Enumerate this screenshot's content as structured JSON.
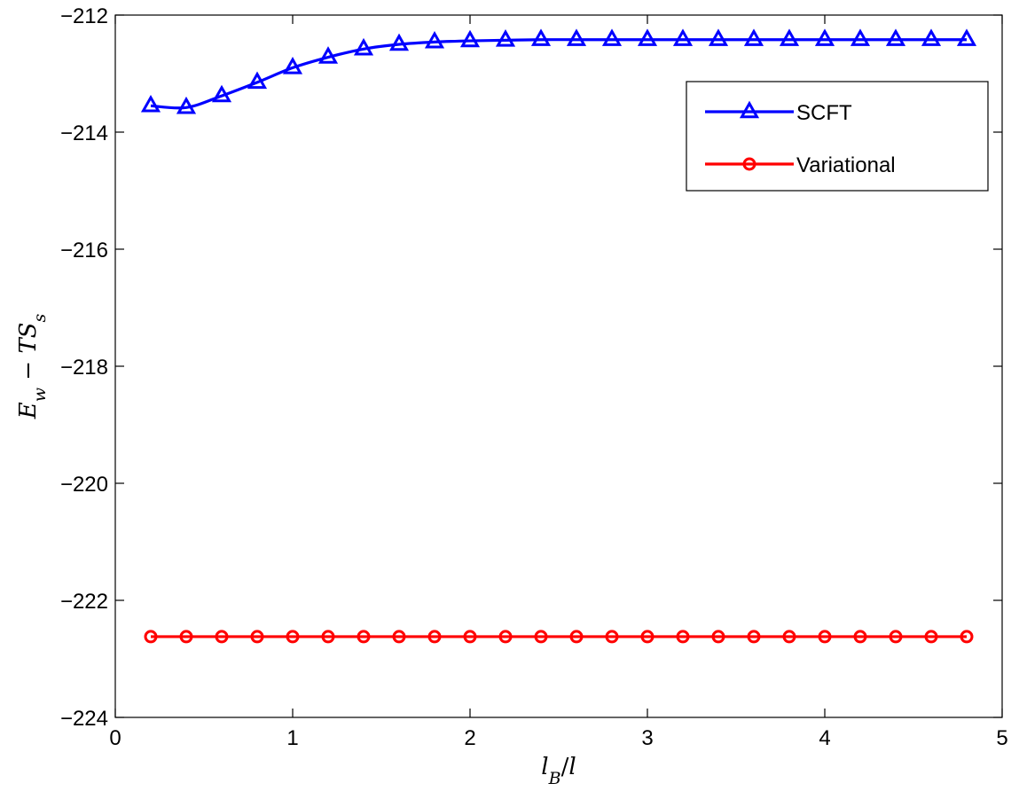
{
  "chart_data": {
    "type": "line",
    "title": "",
    "xlabel": "l_B/l",
    "ylabel": "E_w − TS_s",
    "xlim": [
      0,
      5
    ],
    "ylim": [
      -224,
      -212
    ],
    "xticks": [
      0,
      1,
      2,
      3,
      4,
      5
    ],
    "yticks": [
      -224,
      -222,
      -220,
      -218,
      -216,
      -214,
      -212
    ],
    "xtick_labels": [
      "0",
      "1",
      "2",
      "3",
      "4",
      "5"
    ],
    "ytick_labels": [
      "−224",
      "−222",
      "−220",
      "−218",
      "−216",
      "−214",
      "−212"
    ],
    "grid": false,
    "legend_position": "top-right",
    "x": [
      0.2,
      0.4,
      0.6,
      0.8,
      1.0,
      1.2,
      1.4,
      1.6,
      1.8,
      2.0,
      2.2,
      2.4,
      2.6,
      2.8,
      3.0,
      3.2,
      3.4,
      3.6,
      3.8,
      4.0,
      4.2,
      4.4,
      4.6,
      4.8
    ],
    "series": [
      {
        "name": "SCFT",
        "color": "#0000ff",
        "marker": "triangle",
        "values": [
          -213.55,
          -213.58,
          -213.38,
          -213.15,
          -212.9,
          -212.72,
          -212.58,
          -212.5,
          -212.46,
          -212.44,
          -212.43,
          -212.42,
          -212.42,
          -212.42,
          -212.42,
          -212.42,
          -212.42,
          -212.42,
          -212.42,
          -212.42,
          -212.42,
          -212.42,
          -212.42,
          -212.42
        ]
      },
      {
        "name": "Variational",
        "color": "#ff0000",
        "marker": "circle",
        "values": [
          -222.62,
          -222.62,
          -222.62,
          -222.62,
          -222.62,
          -222.62,
          -222.62,
          -222.62,
          -222.62,
          -222.62,
          -222.62,
          -222.62,
          -222.62,
          -222.62,
          -222.62,
          -222.62,
          -222.62,
          -222.62,
          -222.62,
          -222.62,
          -222.62,
          -222.62,
          -222.62,
          -222.62
        ]
      }
    ]
  }
}
